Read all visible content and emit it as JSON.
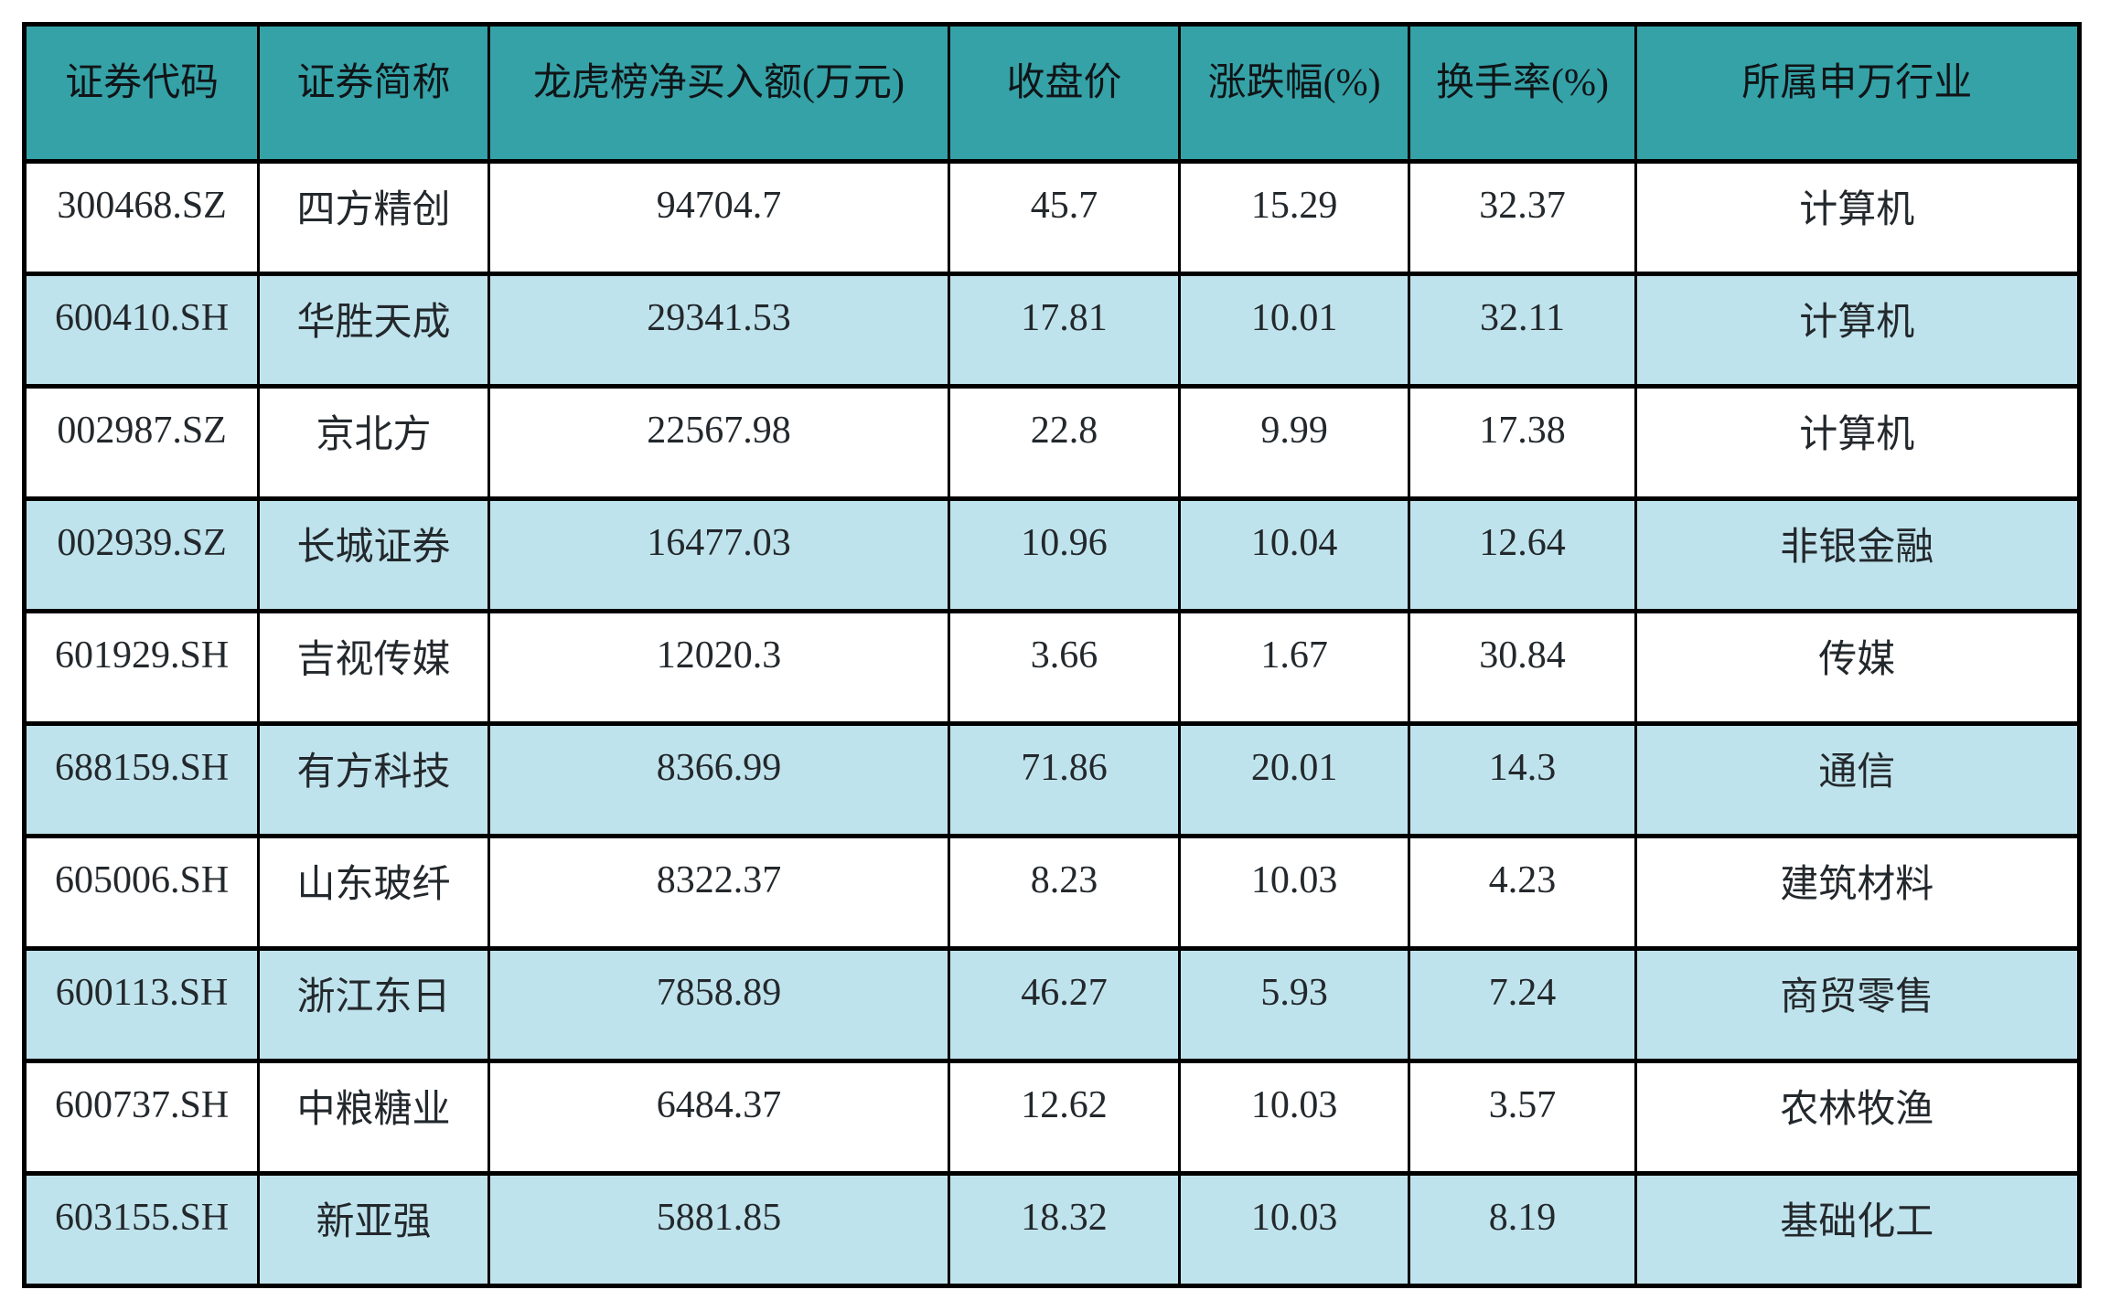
{
  "chart_data": {
    "type": "table",
    "title": "",
    "columns": [
      "证券代码",
      "证券简称",
      "龙虎榜净买入额(万元)",
      "收盘价",
      "涨跌幅(%)",
      "换手率(%)",
      "所属申万行业"
    ],
    "rows": [
      [
        "300468.SZ",
        "四方精创",
        "94704.7",
        "45.7",
        "15.29",
        "32.37",
        "计算机"
      ],
      [
        "600410.SH",
        "华胜天成",
        "29341.53",
        "17.81",
        "10.01",
        "32.11",
        "计算机"
      ],
      [
        "002987.SZ",
        "京北方",
        "22567.98",
        "22.8",
        "9.99",
        "17.38",
        "计算机"
      ],
      [
        "002939.SZ",
        "长城证券",
        "16477.03",
        "10.96",
        "10.04",
        "12.64",
        "非银金融"
      ],
      [
        "601929.SH",
        "吉视传媒",
        "12020.3",
        "3.66",
        "1.67",
        "30.84",
        "传媒"
      ],
      [
        "688159.SH",
        "有方科技",
        "8366.99",
        "71.86",
        "20.01",
        "14.3",
        "通信"
      ],
      [
        "605006.SH",
        "山东玻纤",
        "8322.37",
        "8.23",
        "10.03",
        "4.23",
        "建筑材料"
      ],
      [
        "600113.SH",
        "浙江东日",
        "7858.89",
        "46.27",
        "5.93",
        "7.24",
        "商贸零售"
      ],
      [
        "600737.SH",
        "中粮糖业",
        "6484.37",
        "12.62",
        "10.03",
        "3.57",
        "农林牧渔"
      ],
      [
        "603155.SH",
        "新亚强",
        "5881.85",
        "18.32",
        "10.03",
        "8.19",
        "基础化工"
      ]
    ],
    "layout": {
      "legend": "none",
      "grid": "full black cell borders",
      "row_striping": "rows alternate white and light cyan, starting white"
    },
    "colors": {
      "header_bg": "#35a2a7",
      "alt_row_bg": "#bfe3ec",
      "row_bg": "#ffffff",
      "border": "#000000",
      "text": "#23282c"
    }
  }
}
